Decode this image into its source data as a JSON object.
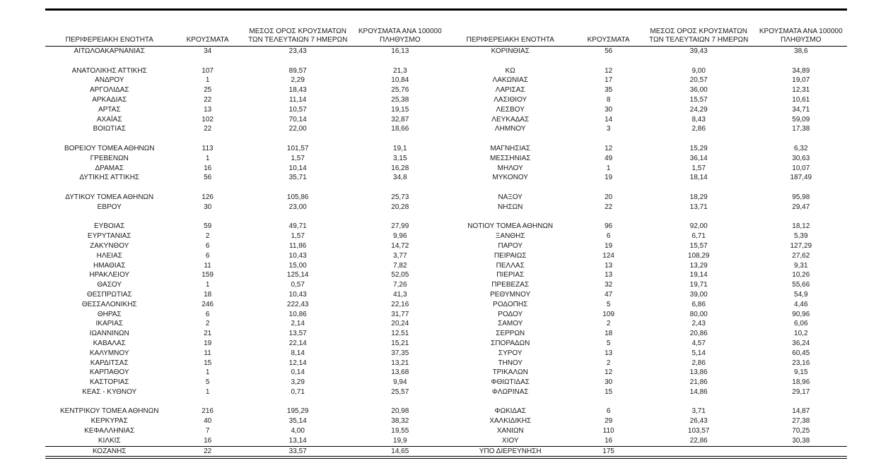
{
  "table": {
    "headers": [
      "ΠΕΡΙΦΕΡΕΙΑΚΗ ΕΝΟΤΗΤΑ",
      "ΚΡΟΥΣΜΑΤΑ",
      "ΜΕΣΟΣ ΟΡΟΣ ΚΡΟΥΣΜΑΤΩΝ\nΤΩΝ ΤΕΛΕΥΤΑΙΩΝ 7 ΗΜΕΡΩΝ",
      "ΚΡΟΥΣΜΑΤΑ ΑΝΑ 100000\nΠΛΗΘΥΣΜΟ"
    ],
    "left_rows": [
      [
        "ΑΙΤΩΛΟΑΚΑΡΝΑΝΙΑΣ",
        "34",
        "23,43",
        "16,13"
      ],
      null,
      [
        "ΑΝΑΤΟΛΙΚΗΣ ΑΤΤΙΚΗΣ",
        "107",
        "89,57",
        "21,3"
      ],
      [
        "ΑΝΔΡΟΥ",
        "1",
        "2,29",
        "10,84"
      ],
      [
        "ΑΡΓΟΛΙΔΑΣ",
        "25",
        "18,43",
        "25,76"
      ],
      [
        "ΑΡΚΑΔΙΑΣ",
        "22",
        "11,14",
        "25,38"
      ],
      [
        "ΑΡΤΑΣ",
        "13",
        "10,57",
        "19,15"
      ],
      [
        "ΑΧΑΪΑΣ",
        "102",
        "70,14",
        "32,87"
      ],
      [
        "ΒΟΙΩΤΙΑΣ",
        "22",
        "22,00",
        "18,66"
      ],
      null,
      [
        "ΒΟΡΕΙΟΥ ΤΟΜΕΑ ΑΘΗΝΩΝ",
        "113",
        "101,57",
        "19,1"
      ],
      [
        "ΓΡΕΒΕΝΩΝ",
        "1",
        "1,57",
        "3,15"
      ],
      [
        "ΔΡΑΜΑΣ",
        "16",
        "10,14",
        "16,28"
      ],
      [
        "ΔΥΤΙΚΗΣ ΑΤΤΙΚΗΣ",
        "56",
        "35,71",
        "34,8"
      ],
      null,
      [
        "ΔΥΤΙΚΟΥ ΤΟΜΕΑ ΑΘΗΝΩΝ",
        "126",
        "105,86",
        "25,73"
      ],
      [
        "ΕΒΡΟΥ",
        "30",
        "23,00",
        "20,28"
      ],
      null,
      [
        "ΕΥΒΟΙΑΣ",
        "59",
        "49,71",
        "27,99"
      ],
      [
        "ΕΥΡΥΤΑΝΙΑΣ",
        "2",
        "1,57",
        "9,96"
      ],
      [
        "ΖΑΚΥΝΘΟΥ",
        "6",
        "11,86",
        "14,72"
      ],
      [
        "ΗΛΕΙΑΣ",
        "6",
        "10,43",
        "3,77"
      ],
      [
        "ΗΜΑΘΙΑΣ",
        "11",
        "15,00",
        "7,82"
      ],
      [
        "ΗΡΑΚΛΕΙΟΥ",
        "159",
        "125,14",
        "52,05"
      ],
      [
        "ΘΑΣΟΥ",
        "1",
        "0,57",
        "7,26"
      ],
      [
        "ΘΕΣΠΡΩΤΙΑΣ",
        "18",
        "10,43",
        "41,3"
      ],
      [
        "ΘΕΣΣΑΛΟΝΙΚΗΣ",
        "246",
        "222,43",
        "22,16"
      ],
      [
        "ΘΗΡΑΣ",
        "6",
        "10,86",
        "31,77"
      ],
      [
        "ΙΚΑΡΙΑΣ",
        "2",
        "2,14",
        "20,24"
      ],
      [
        "ΙΩΑΝΝΙΝΩΝ",
        "21",
        "13,57",
        "12,51"
      ],
      [
        "ΚΑΒΑΛΑΣ",
        "19",
        "22,14",
        "15,21"
      ],
      [
        "ΚΑΛΥΜΝΟΥ",
        "11",
        "8,14",
        "37,35"
      ],
      [
        "ΚΑΡΔΙΤΣΑΣ",
        "15",
        "12,14",
        "13,21"
      ],
      [
        "ΚΑΡΠΑΘΟΥ",
        "1",
        "0,14",
        "13,68"
      ],
      [
        "ΚΑΣΤΟΡΙΑΣ",
        "5",
        "3,29",
        "9,94"
      ],
      [
        "ΚΕΑΣ - ΚΥΘΝΟΥ",
        "1",
        "0,71",
        "25,57"
      ],
      null,
      [
        "ΚΕΝΤΡΙΚΟΥ ΤΟΜΕΑ ΑΘΗΝΩΝ",
        "216",
        "195,29",
        "20,98"
      ],
      [
        "ΚΕΡΚΥΡΑΣ",
        "40",
        "35,14",
        "38,32"
      ],
      [
        "ΚΕΦΑΛΛΗΝΙΑΣ",
        "7",
        "4,00",
        "19,55"
      ],
      [
        "ΚΙΛΚΙΣ",
        "16",
        "13,14",
        "19,9"
      ],
      [
        "ΚΟΖΑΝΗΣ",
        "22",
        "33,57",
        "14,65"
      ]
    ],
    "right_rows": [
      [
        "ΚΟΡΙΝΘΙΑΣ",
        "56",
        "39,43",
        "38,6"
      ],
      null,
      [
        "ΚΩ",
        "12",
        "9,00",
        "34,89"
      ],
      [
        "ΛΑΚΩΝΙΑΣ",
        "17",
        "20,57",
        "19,07"
      ],
      [
        "ΛΑΡΙΣΑΣ",
        "35",
        "36,00",
        "12,31"
      ],
      [
        "ΛΑΣΙΘΙΟΥ",
        "8",
        "15,57",
        "10,61"
      ],
      [
        "ΛΕΣΒΟΥ",
        "30",
        "24,29",
        "34,71"
      ],
      [
        "ΛΕΥΚΑΔΑΣ",
        "14",
        "8,43",
        "59,09"
      ],
      [
        "ΛΗΜΝΟΥ",
        "3",
        "2,86",
        "17,38"
      ],
      null,
      [
        "ΜΑΓΝΗΣΙΑΣ",
        "12",
        "15,29",
        "6,32"
      ],
      [
        "ΜΕΣΣΗΝΙΑΣ",
        "49",
        "36,14",
        "30,63"
      ],
      [
        "ΜΗΛΟΥ",
        "1",
        "1,57",
        "10,07"
      ],
      [
        "ΜΥΚΟΝΟΥ",
        "19",
        "18,14",
        "187,49"
      ],
      null,
      [
        "ΝΑΞΟΥ",
        "20",
        "18,29",
        "95,98"
      ],
      [
        "ΝΗΣΩΝ",
        "22",
        "13,71",
        "29,47"
      ],
      null,
      [
        "ΝΟΤΙΟΥ ΤΟΜΕΑ ΑΘΗΝΩΝ",
        "96",
        "92,00",
        "18,12"
      ],
      [
        "ΞΑΝΘΗΣ",
        "6",
        "6,71",
        "5,39"
      ],
      [
        "ΠΑΡΟΥ",
        "19",
        "15,57",
        "127,29"
      ],
      [
        "ΠΕΙΡΑΙΩΣ",
        "124",
        "108,29",
        "27,62"
      ],
      [
        "ΠΕΛΛΑΣ",
        "13",
        "13,29",
        "9,31"
      ],
      [
        "ΠΙΕΡΙΑΣ",
        "13",
        "19,14",
        "10,26"
      ],
      [
        "ΠΡΕΒΕΖΑΣ",
        "32",
        "19,71",
        "55,66"
      ],
      [
        "ΡΕΘΥΜΝΟΥ",
        "47",
        "39,00",
        "54,9"
      ],
      [
        "ΡΟΔΟΠΗΣ",
        "5",
        "6,86",
        "4,46"
      ],
      [
        "ΡΟΔΟΥ",
        "109",
        "80,00",
        "90,96"
      ],
      [
        "ΣΑΜΟΥ",
        "2",
        "2,43",
        "6,06"
      ],
      [
        "ΣΕΡΡΩΝ",
        "18",
        "20,86",
        "10,2"
      ],
      [
        "ΣΠΟΡΑΔΩΝ",
        "5",
        "4,57",
        "36,24"
      ],
      [
        "ΣΥΡΟΥ",
        "13",
        "5,14",
        "60,45"
      ],
      [
        "ΤΗΝΟΥ",
        "2",
        "2,86",
        "23,16"
      ],
      [
        "ΤΡΙΚΑΛΩΝ",
        "12",
        "13,86",
        "9,15"
      ],
      [
        "ΦΘΙΩΤΙΔΑΣ",
        "30",
        "21,86",
        "18,96"
      ],
      [
        "ΦΛΩΡΙΝΑΣ",
        "15",
        "14,86",
        "29,17"
      ],
      null,
      [
        "ΦΩΚΙΔΑΣ",
        "6",
        "3,71",
        "14,87"
      ],
      [
        "ΧΑΛΚΙΔΙΚΗΣ",
        "29",
        "26,43",
        "27,38"
      ],
      [
        "ΧΑΝΙΩΝ",
        "110",
        "103,57",
        "70,25"
      ],
      [
        "ΧΙΟΥ",
        "16",
        "22,86",
        "30,38"
      ],
      [
        "ΥΠΟ ΔΙΕΡΕΥΝΗΣΗ",
        "175",
        "",
        ""
      ]
    ]
  }
}
